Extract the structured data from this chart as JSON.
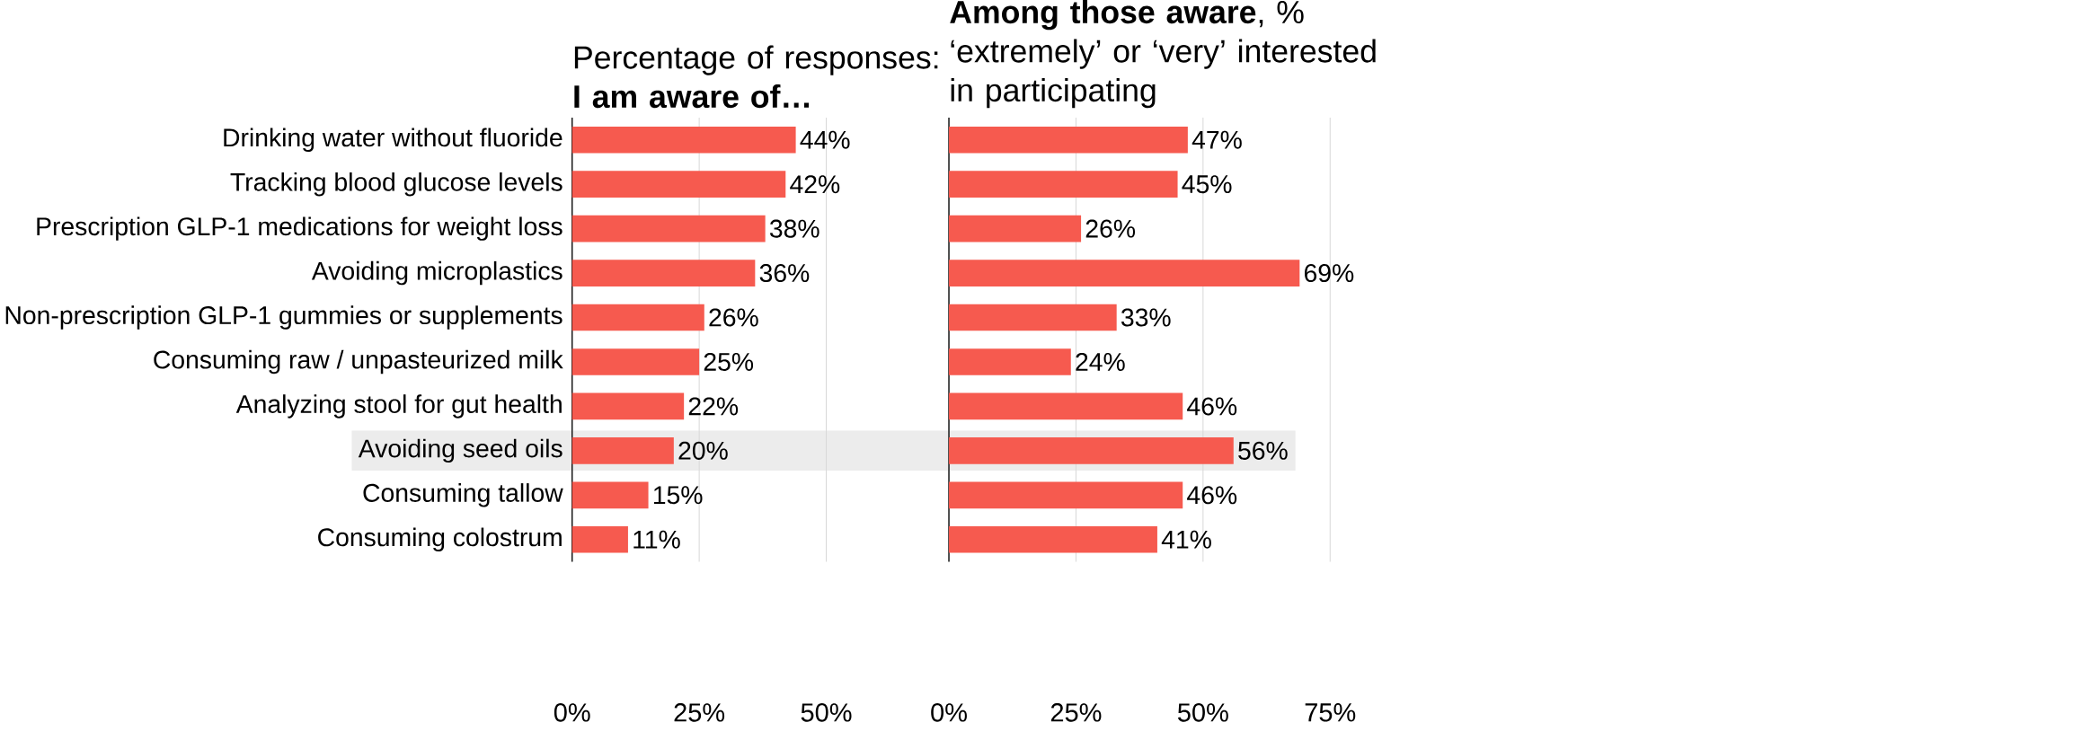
{
  "chart_data": [
    {
      "type": "bar",
      "orientation": "horizontal",
      "title": "Percentage of responses:",
      "subtitle": "**I am aware of…**",
      "categories": [
        "Drinking water without fluoride",
        "Tracking blood glucose levels",
        "Prescription GLP-1 medications for weight loss",
        "Avoiding microplastics",
        "Non-prescription GLP-1 gummies or supplements",
        "Consuming raw / unpasteurized milk",
        "Analyzing stool for gut health",
        "Avoiding seed oils",
        "Consuming tallow",
        "Consuming colostrum"
      ],
      "values": [
        44,
        42,
        38,
        36,
        26,
        25,
        22,
        20,
        15,
        11
      ],
      "value_labels": [
        "44%",
        "42%",
        "38%",
        "36%",
        "26%",
        "25%",
        "22%",
        "20%",
        "15%",
        "11%"
      ],
      "color": "#f65a4f",
      "xlim": [
        0,
        50
      ],
      "xticks": [
        {
          "value": 0,
          "label": "0%"
        },
        {
          "value": 25,
          "label": "25%"
        },
        {
          "value": 50,
          "label": "50%"
        }
      ],
      "grid": "x",
      "bands": [
        {
          "axis": "y",
          "from": "Avoiding seed oils",
          "to": "Avoiding seed oils",
          "color": "#ececec"
        }
      ]
    },
    {
      "type": "bar",
      "orientation": "horizontal",
      "title": "**Among those aware**, % ‘extremely’ or ‘very’ interested in participating",
      "categories": [
        null,
        null,
        null,
        null,
        null,
        null,
        null,
        null,
        null,
        null
      ],
      "values": [
        47,
        45,
        26,
        69,
        33,
        24,
        46,
        56,
        46,
        41
      ],
      "value_labels": [
        "47%",
        "45%",
        "26%",
        "69%",
        "33%",
        "24%",
        "46%",
        "56%",
        "46%",
        "41%"
      ],
      "color": "#f65a4f",
      "xlim": [
        0,
        75
      ],
      "xticks": [
        {
          "value": 0,
          "label": "0%"
        },
        {
          "value": 25,
          "label": "25%"
        },
        {
          "value": 50,
          "label": "50%"
        },
        {
          "value": 75,
          "label": "75%"
        }
      ],
      "grid": "x",
      "tick_labels": "x"
    }
  ]
}
